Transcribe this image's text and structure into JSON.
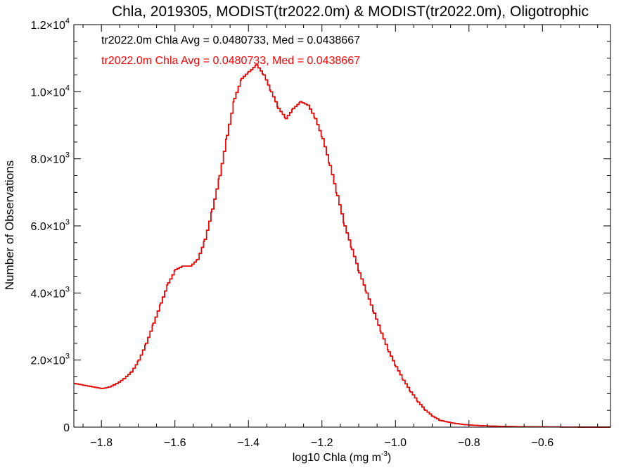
{
  "chart_data": {
    "type": "line",
    "title": "Chla, 2019305, MODIST(tr2022.0m) & MODIST(tr2022.0m), Oligotrophic",
    "xlabel_main": "log10 Chla (mg m",
    "xlabel_sup": "-3",
    "xlabel_close": ")",
    "ylabel": "Number of Observations",
    "xlim": [
      -1.875,
      -0.415
    ],
    "ylim": [
      0,
      12000
    ],
    "x_ticks": [
      {
        "v": -1.8,
        "label": "−1.8"
      },
      {
        "v": -1.6,
        "label": "−1.6"
      },
      {
        "v": -1.4,
        "label": "−1.4"
      },
      {
        "v": -1.2,
        "label": "−1.2"
      },
      {
        "v": -1.0,
        "label": "−1.0"
      },
      {
        "v": -0.8,
        "label": "−0.8"
      },
      {
        "v": -0.6,
        "label": "−0.6"
      }
    ],
    "y_ticks": [
      {
        "v": 0,
        "mant": "0",
        "exp": ""
      },
      {
        "v": 2000,
        "mant": "2.0×10",
        "exp": "3"
      },
      {
        "v": 4000,
        "mant": "4.0×10",
        "exp": "3"
      },
      {
        "v": 6000,
        "mant": "6.0×10",
        "exp": "3"
      },
      {
        "v": 8000,
        "mant": "8.0×10",
        "exp": "3"
      },
      {
        "v": 10000,
        "mant": "1.0×10",
        "exp": "4"
      },
      {
        "v": 12000,
        "mant": "1.2×10",
        "exp": "4"
      }
    ],
    "annotations": [
      {
        "text": "tr2022.0m Chla Avg = 0.0480733, Med = 0.0438667",
        "color": "#000000"
      },
      {
        "text": "tr2022.0m Chla Avg = 0.0480733, Med = 0.0438667",
        "color": "#ff0000"
      }
    ],
    "series": [
      {
        "color": "#000000",
        "points": [
          [
            -1.875,
            1300
          ],
          [
            -1.85,
            1250
          ],
          [
            -1.825,
            1200
          ],
          [
            -1.8,
            1150
          ],
          [
            -1.78,
            1200
          ],
          [
            -1.76,
            1300
          ],
          [
            -1.74,
            1450
          ],
          [
            -1.72,
            1650
          ],
          [
            -1.7,
            2000
          ],
          [
            -1.68,
            2500
          ],
          [
            -1.66,
            3100
          ],
          [
            -1.64,
            3700
          ],
          [
            -1.62,
            4300
          ],
          [
            -1.6,
            4700
          ],
          [
            -1.58,
            4800
          ],
          [
            -1.56,
            4800
          ],
          [
            -1.54,
            5000
          ],
          [
            -1.52,
            5600
          ],
          [
            -1.5,
            6500
          ],
          [
            -1.48,
            7500
          ],
          [
            -1.46,
            8700
          ],
          [
            -1.44,
            9800
          ],
          [
            -1.42,
            10400
          ],
          [
            -1.4,
            10600
          ],
          [
            -1.38,
            10800
          ],
          [
            -1.36,
            10500
          ],
          [
            -1.34,
            10000
          ],
          [
            -1.32,
            9500
          ],
          [
            -1.3,
            9200
          ],
          [
            -1.28,
            9500
          ],
          [
            -1.26,
            9700
          ],
          [
            -1.24,
            9600
          ],
          [
            -1.22,
            9200
          ],
          [
            -1.2,
            8600
          ],
          [
            -1.18,
            7800
          ],
          [
            -1.16,
            6900
          ],
          [
            -1.14,
            6000
          ],
          [
            -1.12,
            5300
          ],
          [
            -1.1,
            4600
          ],
          [
            -1.08,
            4000
          ],
          [
            -1.06,
            3400
          ],
          [
            -1.04,
            2800
          ],
          [
            -1.02,
            2250
          ],
          [
            -1.0,
            1800
          ],
          [
            -0.98,
            1400
          ],
          [
            -0.96,
            1050
          ],
          [
            -0.94,
            750
          ],
          [
            -0.92,
            500
          ],
          [
            -0.9,
            320
          ],
          [
            -0.88,
            200
          ],
          [
            -0.85,
            130
          ],
          [
            -0.82,
            80
          ],
          [
            -0.78,
            50
          ],
          [
            -0.74,
            30
          ],
          [
            -0.7,
            20
          ],
          [
            -0.65,
            12
          ],
          [
            -0.6,
            8
          ],
          [
            -0.55,
            5
          ],
          [
            -0.5,
            3
          ],
          [
            -0.415,
            2
          ]
        ]
      },
      {
        "color": "#ff0000",
        "points": [
          [
            -1.875,
            1300
          ],
          [
            -1.85,
            1250
          ],
          [
            -1.825,
            1200
          ],
          [
            -1.8,
            1150
          ],
          [
            -1.78,
            1200
          ],
          [
            -1.76,
            1300
          ],
          [
            -1.74,
            1450
          ],
          [
            -1.72,
            1650
          ],
          [
            -1.7,
            2000
          ],
          [
            -1.68,
            2500
          ],
          [
            -1.66,
            3100
          ],
          [
            -1.64,
            3700
          ],
          [
            -1.62,
            4300
          ],
          [
            -1.6,
            4700
          ],
          [
            -1.58,
            4800
          ],
          [
            -1.56,
            4800
          ],
          [
            -1.54,
            5000
          ],
          [
            -1.52,
            5600
          ],
          [
            -1.5,
            6500
          ],
          [
            -1.48,
            7500
          ],
          [
            -1.46,
            8700
          ],
          [
            -1.44,
            9800
          ],
          [
            -1.42,
            10400
          ],
          [
            -1.4,
            10600
          ],
          [
            -1.38,
            10800
          ],
          [
            -1.36,
            10500
          ],
          [
            -1.34,
            10000
          ],
          [
            -1.32,
            9500
          ],
          [
            -1.3,
            9200
          ],
          [
            -1.28,
            9500
          ],
          [
            -1.26,
            9700
          ],
          [
            -1.24,
            9600
          ],
          [
            -1.22,
            9200
          ],
          [
            -1.2,
            8600
          ],
          [
            -1.18,
            7800
          ],
          [
            -1.16,
            6900
          ],
          [
            -1.14,
            6000
          ],
          [
            -1.12,
            5300
          ],
          [
            -1.1,
            4600
          ],
          [
            -1.08,
            4000
          ],
          [
            -1.06,
            3400
          ],
          [
            -1.04,
            2800
          ],
          [
            -1.02,
            2250
          ],
          [
            -1.0,
            1800
          ],
          [
            -0.98,
            1400
          ],
          [
            -0.96,
            1050
          ],
          [
            -0.94,
            750
          ],
          [
            -0.92,
            500
          ],
          [
            -0.9,
            320
          ],
          [
            -0.88,
            200
          ],
          [
            -0.85,
            130
          ],
          [
            -0.82,
            80
          ],
          [
            -0.78,
            50
          ],
          [
            -0.74,
            30
          ],
          [
            -0.7,
            20
          ],
          [
            -0.65,
            12
          ],
          [
            -0.6,
            8
          ],
          [
            -0.55,
            5
          ],
          [
            -0.5,
            3
          ],
          [
            -0.415,
            2
          ]
        ]
      }
    ]
  }
}
